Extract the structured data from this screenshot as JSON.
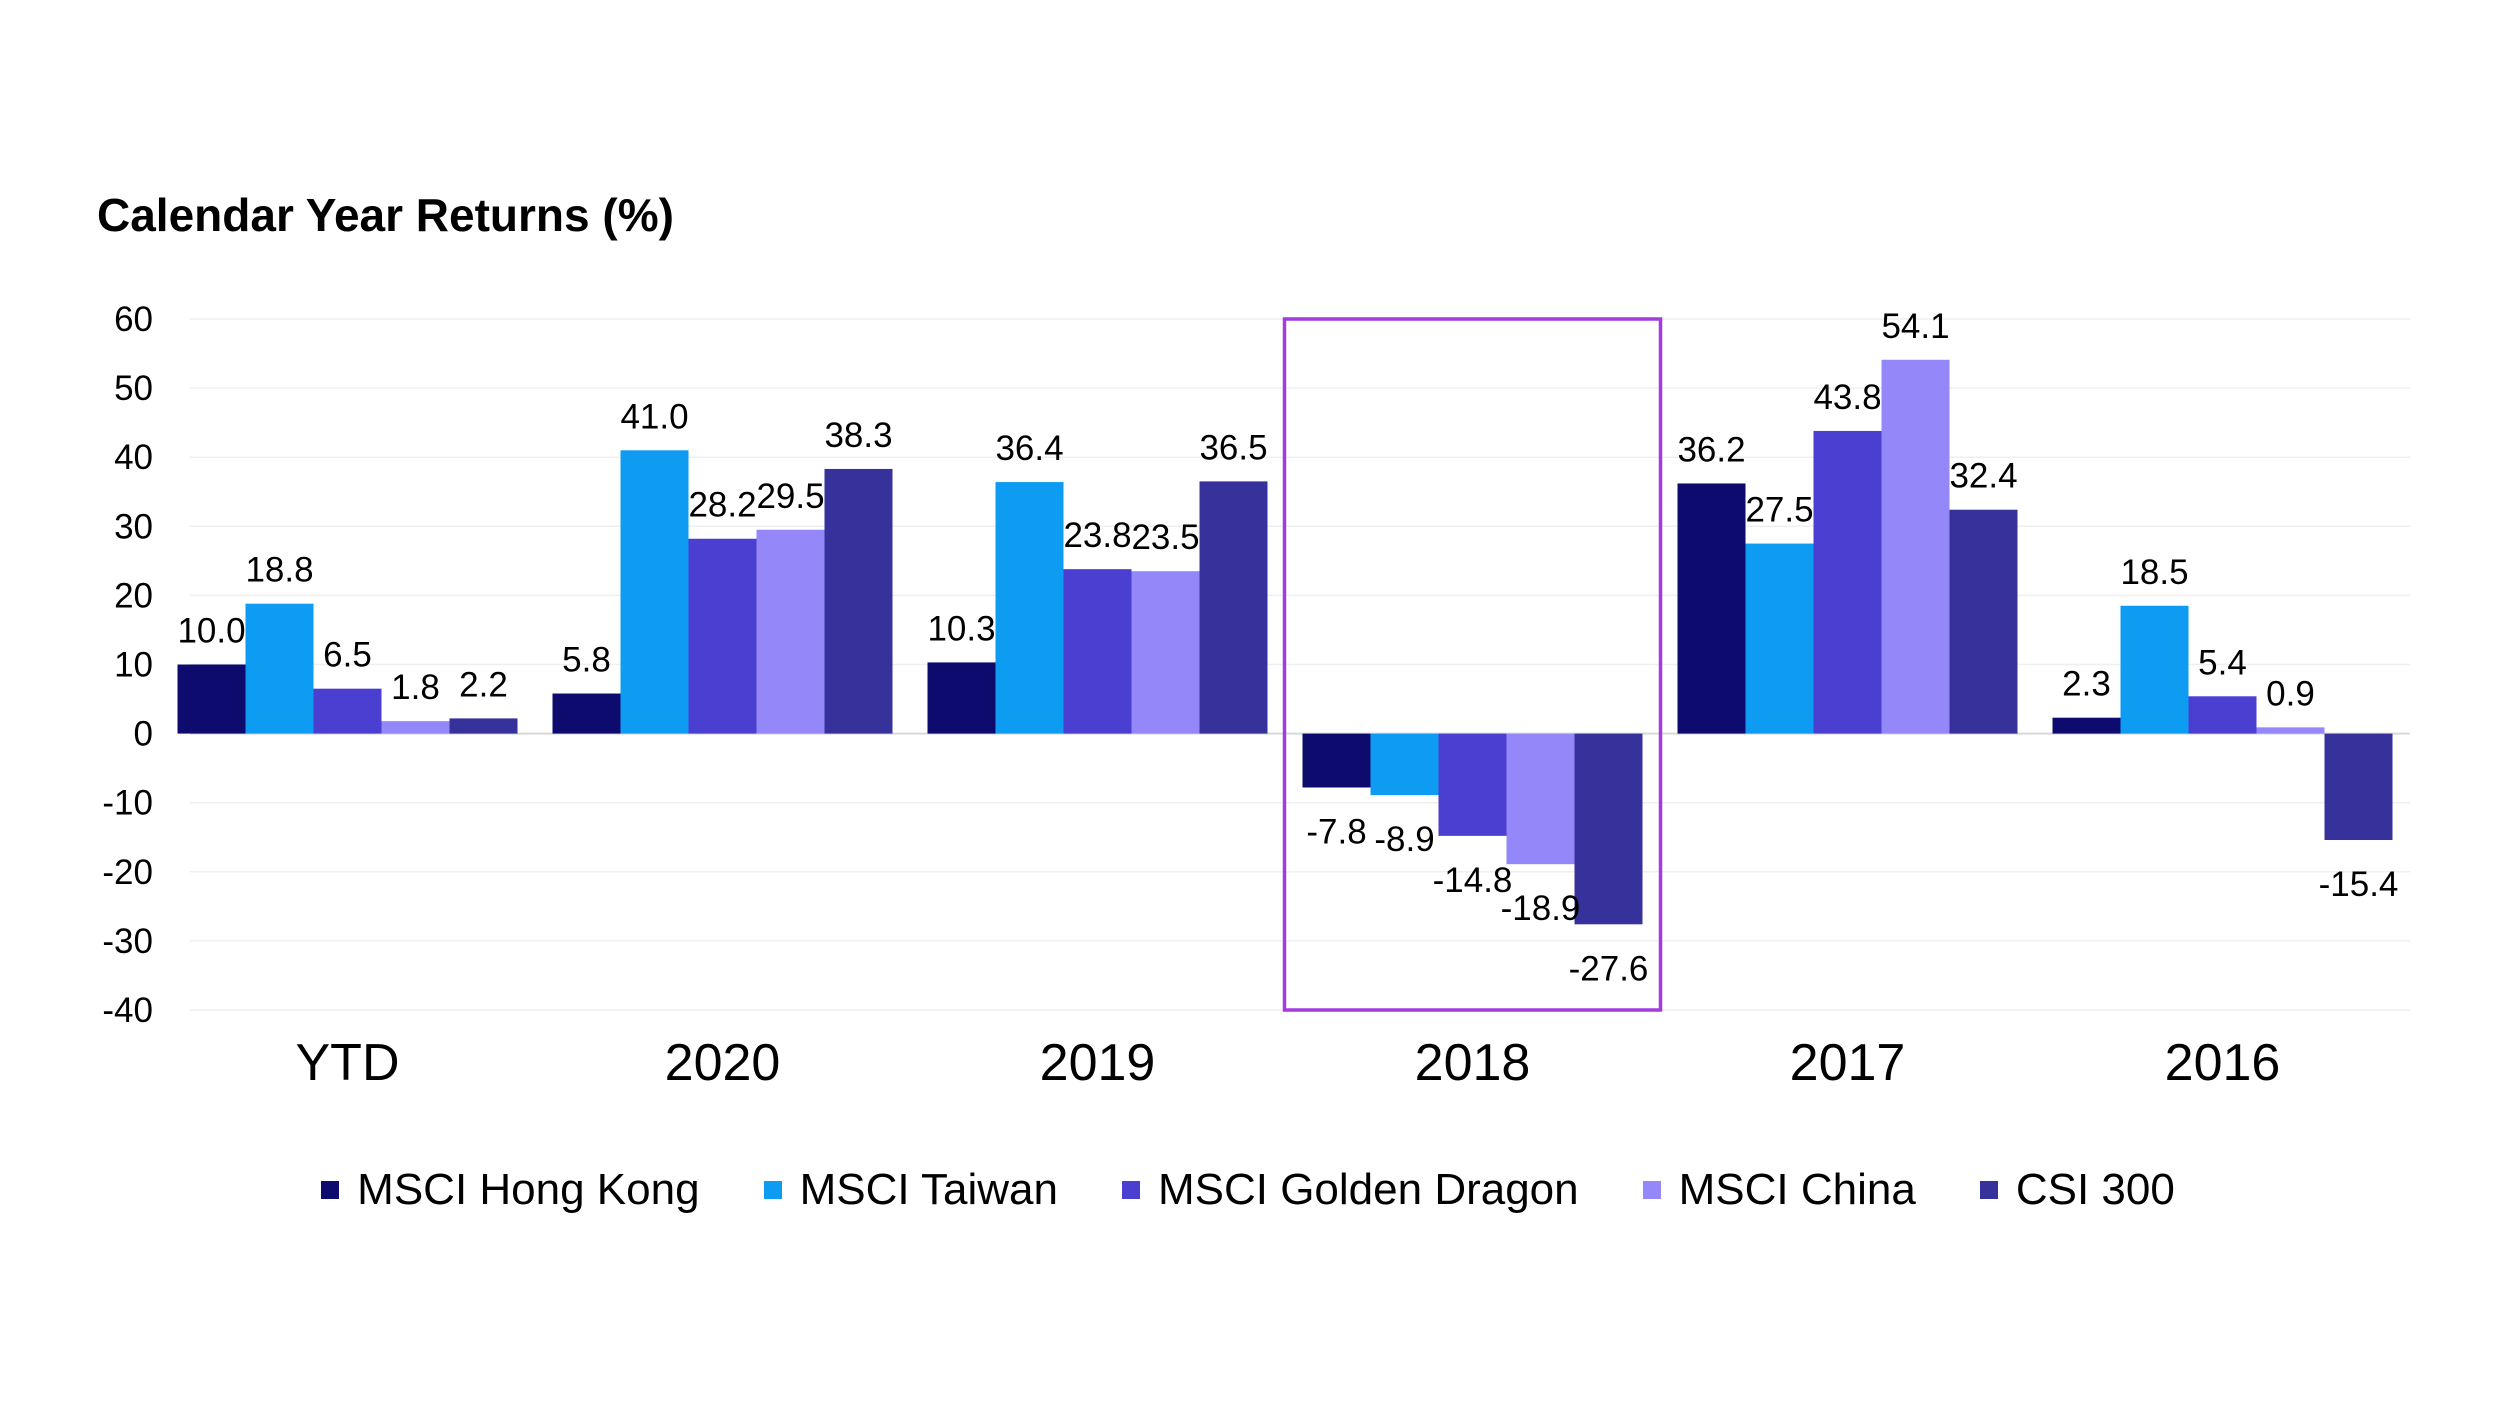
{
  "chart_data": {
    "type": "bar",
    "title": "Calendar Year Returns (%)",
    "categories": [
      "YTD",
      "2020",
      "2019",
      "2018",
      "2017",
      "2016"
    ],
    "ylim": [
      -40,
      60
    ],
    "yticks": [
      60,
      50,
      40,
      30,
      20,
      10,
      0,
      -10,
      -20,
      -30,
      -40
    ],
    "grid": true,
    "legend_position": "bottom",
    "highlighted_category": "2018",
    "highlight_color": "#a23ce0",
    "series": [
      {
        "name": "MSCI Hong Kong",
        "color": "#0d0c6e",
        "values": [
          10.0,
          5.8,
          10.3,
          -7.8,
          36.2,
          2.3
        ],
        "labels": [
          "10.0",
          "5.8",
          "10.3",
          "-7.8",
          "36.2",
          "2.3"
        ]
      },
      {
        "name": "MSCI Taiwan",
        "color": "#0e9bf2",
        "values": [
          18.8,
          41.0,
          36.4,
          -8.9,
          27.5,
          18.5
        ],
        "labels": [
          "18.8",
          "41.0",
          "36.4",
          "-8.9",
          "27.5",
          "18.5"
        ]
      },
      {
        "name": "MSCI Golden Dragon",
        "color": "#4a3fd0",
        "values": [
          6.5,
          28.2,
          23.8,
          -14.8,
          43.8,
          5.4
        ],
        "labels": [
          "6.5",
          "28.2",
          "23.8",
          "-14.8",
          "43.8",
          "5.4"
        ]
      },
      {
        "name": "MSCI China",
        "color": "#9487f9",
        "values": [
          1.8,
          29.5,
          23.5,
          -18.9,
          54.1,
          0.9
        ],
        "labels": [
          "1.8",
          "29.5",
          "23.5",
          "-18.9",
          "54.1",
          "0.9"
        ]
      },
      {
        "name": "CSI 300",
        "color": "#37319b",
        "values": [
          2.2,
          38.3,
          36.5,
          -27.6,
          32.4,
          -15.4
        ],
        "labels": [
          "2.2",
          "38.3",
          "36.5",
          "-27.6",
          "32.4",
          "-15.4"
        ]
      }
    ]
  }
}
